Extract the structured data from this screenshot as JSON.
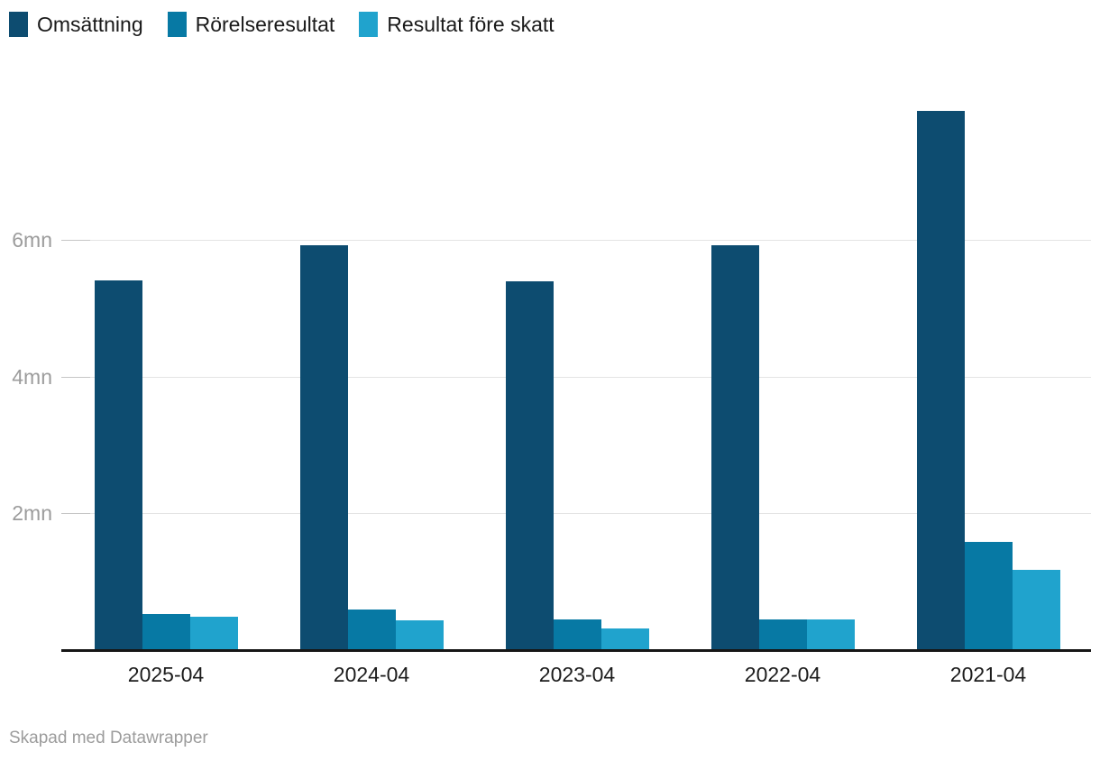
{
  "legend": {
    "items": [
      {
        "label": "Omsättning",
        "color": "#0d4c70"
      },
      {
        "label": "Rörelseresultat",
        "color": "#0779a4"
      },
      {
        "label": "Resultat före skatt",
        "color": "#20a3cd"
      }
    ]
  },
  "footer": {
    "text": "Skapad med Datawrapper"
  },
  "chart_data": {
    "type": "bar",
    "title": "",
    "categories": [
      "2025-04",
      "2024-04",
      "2023-04",
      "2022-04",
      "2021-04"
    ],
    "series": [
      {
        "name": "Omsättning",
        "color": "#0d4c70",
        "values": [
          5.41,
          5.92,
          5.4,
          5.93,
          7.89
        ]
      },
      {
        "name": "Rörelseresultat",
        "color": "#0779a4",
        "values": [
          0.53,
          0.59,
          0.45,
          0.45,
          1.58
        ]
      },
      {
        "name": "Resultat före skatt",
        "color": "#20a3cd",
        "values": [
          0.49,
          0.43,
          0.32,
          0.45,
          1.18
        ]
      }
    ],
    "unit": "mn",
    "y_ticks": [
      {
        "value": 2,
        "label": "2mn"
      },
      {
        "value": 4,
        "label": "4mn"
      },
      {
        "value": 6,
        "label": "6mn"
      }
    ],
    "ylim": [
      0,
      8.6
    ],
    "xlabel": "",
    "ylabel": "",
    "grid": true,
    "legend_position": "top-left",
    "attribution": "Skapad med Datawrapper"
  }
}
